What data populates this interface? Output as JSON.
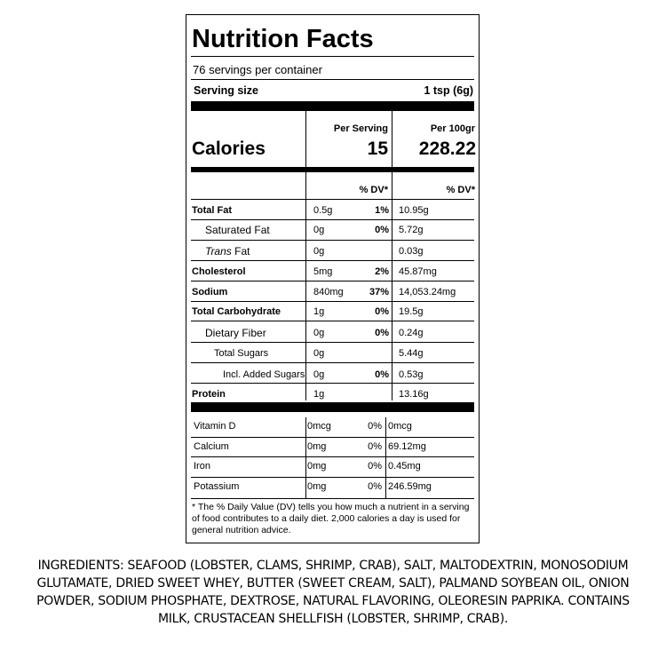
{
  "label": {
    "title": "Nutrition Facts",
    "servings": "76 servings per container",
    "serving_size_label": "Serving size",
    "serving_size_value": "1 tsp (6g)",
    "per_serving_header": "Per Serving",
    "per_100_header": "Per 100gr",
    "calories_label": "Calories",
    "calories_per_serving": "15",
    "calories_per_100": "228.22",
    "dv_header_1": "% DV*",
    "dv_header_2": "% DV*",
    "nutrients": [
      {
        "name": "Total Fat",
        "amount": "0.5g",
        "dv": "1%",
        "per100": "10.95g"
      },
      {
        "name": "Saturated Fat",
        "amount": "0g",
        "dv": "0%",
        "per100": "5.72g"
      },
      {
        "name_italic": "Trans",
        "name_rest": " Fat",
        "amount": "0g",
        "dv": "",
        "per100": "0.03g"
      },
      {
        "name": "Cholesterol",
        "amount": "5mg",
        "dv": "2%",
        "per100": "45.87mg"
      },
      {
        "name": "Sodium",
        "amount": "840mg",
        "dv": "37%",
        "per100": "14,053.24mg"
      },
      {
        "name": "Total Carbohydrate",
        "amount": "1g",
        "dv": "0%",
        "per100": "19.5g"
      },
      {
        "name": "Dietary Fiber",
        "amount": "0g",
        "dv": "0%",
        "per100": "0.24g"
      },
      {
        "name": "Total Sugars",
        "amount": "0g",
        "dv": "",
        "per100": "5.44g"
      },
      {
        "name": "Incl. Added Sugars",
        "amount": "0g",
        "dv": "0%",
        "per100": "0.53g"
      },
      {
        "name": "Protein",
        "amount": "1g",
        "dv": "",
        "per100": "13.16g"
      }
    ],
    "vitamins": [
      {
        "name": "Vitamin D",
        "amount": "0mcg",
        "dv": "0%",
        "per100": "0mcg"
      },
      {
        "name": "Calcium",
        "amount": "0mg",
        "dv": "0%",
        "per100": "69.12mg"
      },
      {
        "name": "Iron",
        "amount": "0mg",
        "dv": "0%",
        "per100": "0.45mg"
      },
      {
        "name": "Potassium",
        "amount": "0mg",
        "dv": "0%",
        "per100": "246.59mg"
      }
    ],
    "footnote": "* The % Daily Value (DV) tells you how much a nutrient in a serving of food contributes to a daily diet. 2,000 calories a day is used for general nutrition advice."
  },
  "ingredients": "INGREDIENTS: SEAFOOD (LOBSTER, CLAMS, SHRIMP, CRAB), SALT, MALTODEXTRIN, MONOSODIUM GLUTAMATE, DRIED SWEET WHEY, BUTTER (SWEET CREAM, SALT), PALMAND SOYBEAN OIL, ONION POWDER, SODIUM PHOSPHATE, DEXTROSE, NATURAL FLAVORING, OLEORESIN PAPRIKA. CONTAINS MILK, CRUSTACEAN SHELLFISH (LOBSTER, SHRIMP, CRAB)."
}
